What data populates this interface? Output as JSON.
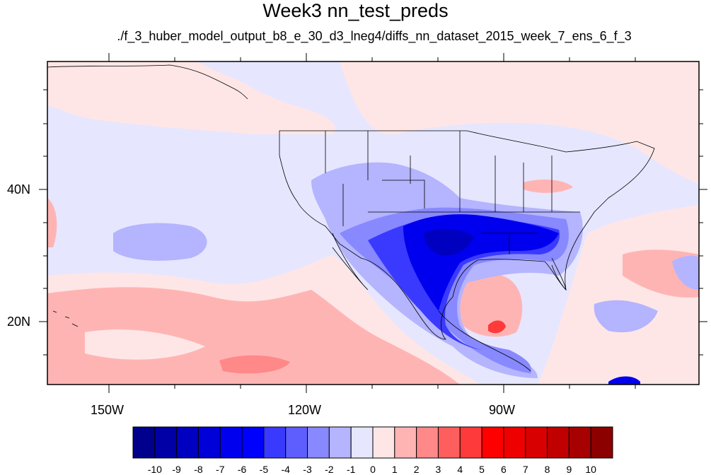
{
  "title": "Week3 nn_test_preds",
  "subtitle": "./f_3_huber_model_output_b8_e_30_d3_lneg4/diffs_nn_dataset_2015_week_7_ens_6_f_3",
  "lat_labels": [
    "40N",
    "20N"
  ],
  "lon_labels": [
    "150W",
    "120W",
    "90W"
  ],
  "colorbar": {
    "labels": [
      "-10",
      "-9",
      "-8",
      "-7",
      "-6",
      "-5",
      "-4",
      "-3",
      "-2",
      "-1",
      "0",
      "1",
      "2",
      "3",
      "4",
      "5",
      "6",
      "7",
      "8",
      "9",
      "10"
    ],
    "colors": [
      "#00008c",
      "#0000a6",
      "#0000c0",
      "#0000d8",
      "#0000ee",
      "#0000ff",
      "#3a3aff",
      "#5e5eff",
      "#8888ff",
      "#b4b4ff",
      "#e6e6ff",
      "#ffe6e6",
      "#ffb4b4",
      "#ff8888",
      "#ff5e5e",
      "#ff3a3a",
      "#ff0000",
      "#ee0000",
      "#d80000",
      "#c00000",
      "#a60000",
      "#8c0000"
    ]
  },
  "field_colors": {
    "background": "#e6e6ff",
    "light_pink": "#ffe6e6",
    "pink": "#ffb4b4",
    "salmon": "#ff8888",
    "light_blue": "#b4b4ff",
    "mid_blue": "#8888ff",
    "blue": "#3a3aff",
    "deep_blue": "#0000ee",
    "core_blue": "#0000c0",
    "red": "#ff3a3a"
  }
}
